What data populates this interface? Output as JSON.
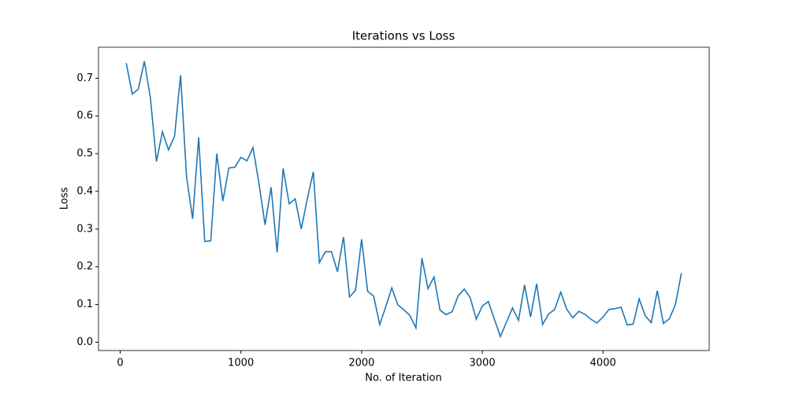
{
  "chart_data": {
    "type": "line",
    "title": "Iterations vs Loss",
    "x_label": "No. of Iteration",
    "y_label": "Loss",
    "x": [
      50,
      100,
      150,
      200,
      250,
      300,
      350,
      400,
      450,
      500,
      550,
      600,
      650,
      700,
      750,
      800,
      850,
      900,
      950,
      1000,
      1050,
      1100,
      1150,
      1200,
      1250,
      1300,
      1350,
      1400,
      1450,
      1500,
      1550,
      1600,
      1650,
      1700,
      1750,
      1800,
      1850,
      1900,
      1950,
      2000,
      2050,
      2100,
      2150,
      2200,
      2250,
      2300,
      2350,
      2400,
      2450,
      2500,
      2550,
      2600,
      2650,
      2700,
      2750,
      2800,
      2850,
      2900,
      2950,
      3000,
      3050,
      3100,
      3150,
      3200,
      3250,
      3300,
      3350,
      3400,
      3450,
      3500,
      3550,
      3600,
      3650,
      3700,
      3750,
      3800,
      3850,
      3900,
      3950,
      4000,
      4050,
      4100,
      4150,
      4200,
      4250,
      4300,
      4350,
      4400,
      4450,
      4500,
      4550,
      4600,
      4650
    ],
    "series": [
      {
        "name": "Loss",
        "color": "#1f77b4",
        "values": [
          0.74,
          0.658,
          0.671,
          0.745,
          0.648,
          0.479,
          0.558,
          0.51,
          0.546,
          0.708,
          0.437,
          0.327,
          0.543,
          0.267,
          0.269,
          0.5,
          0.374,
          0.462,
          0.464,
          0.49,
          0.481,
          0.516,
          0.42,
          0.311,
          0.411,
          0.238,
          0.461,
          0.367,
          0.38,
          0.3,
          0.38,
          0.452,
          0.211,
          0.24,
          0.24,
          0.187,
          0.279,
          0.12,
          0.138,
          0.273,
          0.135,
          0.122,
          0.047,
          0.094,
          0.144,
          0.099,
          0.086,
          0.071,
          0.038,
          0.223,
          0.142,
          0.173,
          0.085,
          0.073,
          0.081,
          0.123,
          0.141,
          0.118,
          0.061,
          0.096,
          0.108,
          0.061,
          0.015,
          0.053,
          0.091,
          0.058,
          0.152,
          0.067,
          0.155,
          0.047,
          0.075,
          0.087,
          0.133,
          0.087,
          0.065,
          0.082,
          0.074,
          0.061,
          0.051,
          0.067,
          0.087,
          0.089,
          0.093,
          0.046,
          0.048,
          0.115,
          0.07,
          0.052,
          0.137,
          0.05,
          0.062,
          0.1,
          0.183
        ]
      }
    ],
    "xlim": [
      -180,
      4880
    ],
    "ylim": [
      -0.022,
      0.782
    ],
    "xticks": [
      0,
      1000,
      2000,
      3000,
      4000
    ],
    "yticks": [
      {
        "value": 0,
        "label": "0.0"
      },
      0.1,
      0.2,
      0.3,
      0.4,
      0.5,
      0.6,
      0.7
    ]
  }
}
